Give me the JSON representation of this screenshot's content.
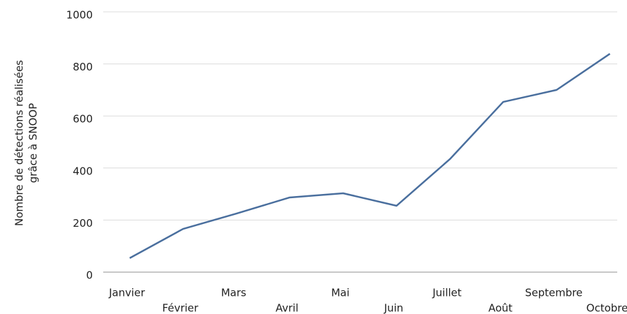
{
  "chart_data": {
    "type": "line",
    "y_label": [
      "Nombre de détections réalisées",
      "grâce à SNOOP"
    ],
    "categories": [
      "Janvier",
      "Février",
      "Mars",
      "Avril",
      "Mai",
      "Juin",
      "Juillet",
      "Août",
      "Septembre",
      "Octobre"
    ],
    "series": [
      {
        "color": "#4a6f9e",
        "values": [
          54,
          166,
          225,
          287,
          303,
          255,
          434,
          654,
          700,
          839
        ]
      }
    ],
    "ylim": [
      0,
      1000
    ],
    "yticks": [
      0,
      200,
      400,
      600,
      800,
      1000
    ],
    "grid": true
  }
}
